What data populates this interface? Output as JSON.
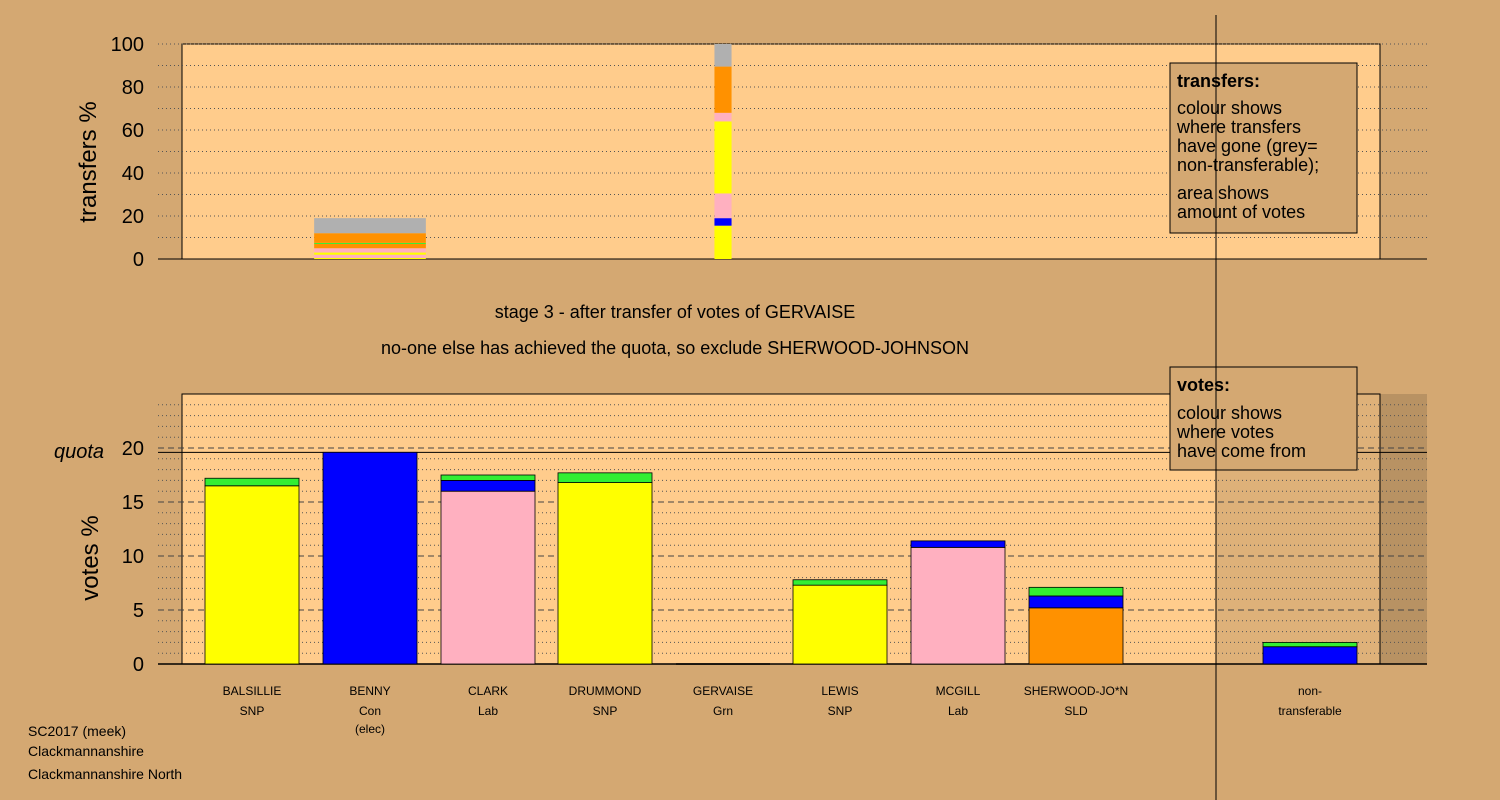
{
  "colors": {
    "background": "#d4a872",
    "plot_area": "#ffcc8c",
    "SNP": "#ffff00",
    "Con": "#0000ff",
    "Lab": "#ffb0c0",
    "Grn": "#33ee33",
    "SLD": "#ff9100",
    "non_transferable": "#b0b0b0"
  },
  "chart_data": [
    {
      "type": "bar",
      "stacked": true,
      "ylabel": "transfers %",
      "ylim": [
        0,
        100
      ],
      "yticks": [
        0,
        20,
        40,
        60,
        80,
        100
      ],
      "categories": [
        "BALSILLIE",
        "BENNY",
        "CLARK",
        "DRUMMOND",
        "GERVAISE",
        "LEWIS",
        "MCGILL",
        "SHERWOOD-JO*N"
      ],
      "note": "bar width shows amount of votes (area = votes)",
      "bars": [
        {
          "category": "BENNY",
          "width_votes": 19.6,
          "segments": [
            {
              "to": "SNP",
              "value": 0.5
            },
            {
              "to": "Lab",
              "value": 1.5
            },
            {
              "to": "SNP",
              "value": 1.0
            },
            {
              "to": "Lab",
              "value": 2.0
            },
            {
              "to": "SLD",
              "value": 2.0
            },
            {
              "to": "Grn",
              "value": 0.5
            },
            {
              "to": "SLD",
              "value": 4.5
            },
            {
              "to": "non_transferable",
              "value": 7.0
            }
          ]
        },
        {
          "category": "GERVAISE",
          "width_votes": 3.0,
          "segments": [
            {
              "to": "SNP",
              "value": 15.5
            },
            {
              "to": "Con",
              "value": 3.5
            },
            {
              "to": "Lab",
              "value": 11.5
            },
            {
              "to": "SNP",
              "value": 33.5
            },
            {
              "to": "Lab",
              "value": 4.0
            },
            {
              "to": "SLD",
              "value": 21.5
            },
            {
              "to": "non_transferable",
              "value": 10.5
            }
          ]
        }
      ],
      "legend": {
        "title": "transfers:",
        "lines1": [
          "colour shows",
          "where transfers",
          "have gone (grey=",
          "non-transferable);"
        ],
        "lines2": [
          "area shows",
          "amount of votes"
        ]
      }
    },
    {
      "type": "bar",
      "stacked": true,
      "ylabel": "votes %",
      "ylim": [
        0,
        25
      ],
      "yticks": [
        0,
        5,
        10,
        15,
        20
      ],
      "quota": 19.6,
      "quota_label": "quota",
      "categories": [
        "BALSILLIE",
        "BENNY",
        "CLARK",
        "DRUMMOND",
        "GERVAISE",
        "LEWIS",
        "MCGILL",
        "SHERWOOD-JO*N",
        "non-transferable"
      ],
      "bars": [
        {
          "category": "BALSILLIE",
          "segments": [
            {
              "from": "SNP",
              "value": 16.5
            },
            {
              "from": "Grn",
              "value": 0.7
            }
          ]
        },
        {
          "category": "BENNY",
          "segments": [
            {
              "from": "Con",
              "value": 19.6
            }
          ]
        },
        {
          "category": "CLARK",
          "segments": [
            {
              "from": "Lab",
              "value": 16.0
            },
            {
              "from": "Con",
              "value": 1.0
            },
            {
              "from": "Grn",
              "value": 0.5
            }
          ]
        },
        {
          "category": "DRUMMOND",
          "segments": [
            {
              "from": "SNP",
              "value": 16.8
            },
            {
              "from": "Grn",
              "value": 0.9
            }
          ]
        },
        {
          "category": "GERVAISE",
          "segments": []
        },
        {
          "category": "LEWIS",
          "segments": [
            {
              "from": "SNP",
              "value": 7.3
            },
            {
              "from": "Grn",
              "value": 0.5
            }
          ]
        },
        {
          "category": "MCGILL",
          "segments": [
            {
              "from": "Lab",
              "value": 10.8
            },
            {
              "from": "Con",
              "value": 0.6
            }
          ]
        },
        {
          "category": "SHERWOOD-JO*N",
          "segments": [
            {
              "from": "SLD",
              "value": 5.2
            },
            {
              "from": "Con",
              "value": 1.1
            },
            {
              "from": "Grn",
              "value": 0.8
            }
          ]
        },
        {
          "category": "non-transferable",
          "segments": [
            {
              "from": "Con",
              "value": 1.6
            },
            {
              "from": "Grn",
              "value": 0.4
            }
          ]
        }
      ],
      "legend": {
        "title": "votes:",
        "lines1": [
          "colour shows",
          "where votes",
          "have come from"
        ]
      }
    }
  ],
  "candidates": [
    {
      "name": "BALSILLIE",
      "party": "SNP",
      "note": ""
    },
    {
      "name": "BENNY",
      "party": "Con",
      "note": "(elec)"
    },
    {
      "name": "CLARK",
      "party": "Lab",
      "note": ""
    },
    {
      "name": "DRUMMOND",
      "party": "SNP",
      "note": ""
    },
    {
      "name": "GERVAISE",
      "party": "Grn",
      "note": ""
    },
    {
      "name": "LEWIS",
      "party": "SNP",
      "note": ""
    },
    {
      "name": "MCGILL",
      "party": "Lab",
      "note": ""
    },
    {
      "name": "SHERWOOD-JO*N",
      "party": "SLD",
      "note": ""
    }
  ],
  "non_transferable_label": [
    "non-",
    "transferable"
  ],
  "stage_title": "stage 3 - after transfer of votes of GERVAISE",
  "stage_subtitle": "no-one else has achieved the quota, so exclude SHERWOOD-JOHNSON",
  "footer": [
    "SC2017 (meek)",
    "Clackmannanshire",
    "Clackmannanshire North"
  ]
}
